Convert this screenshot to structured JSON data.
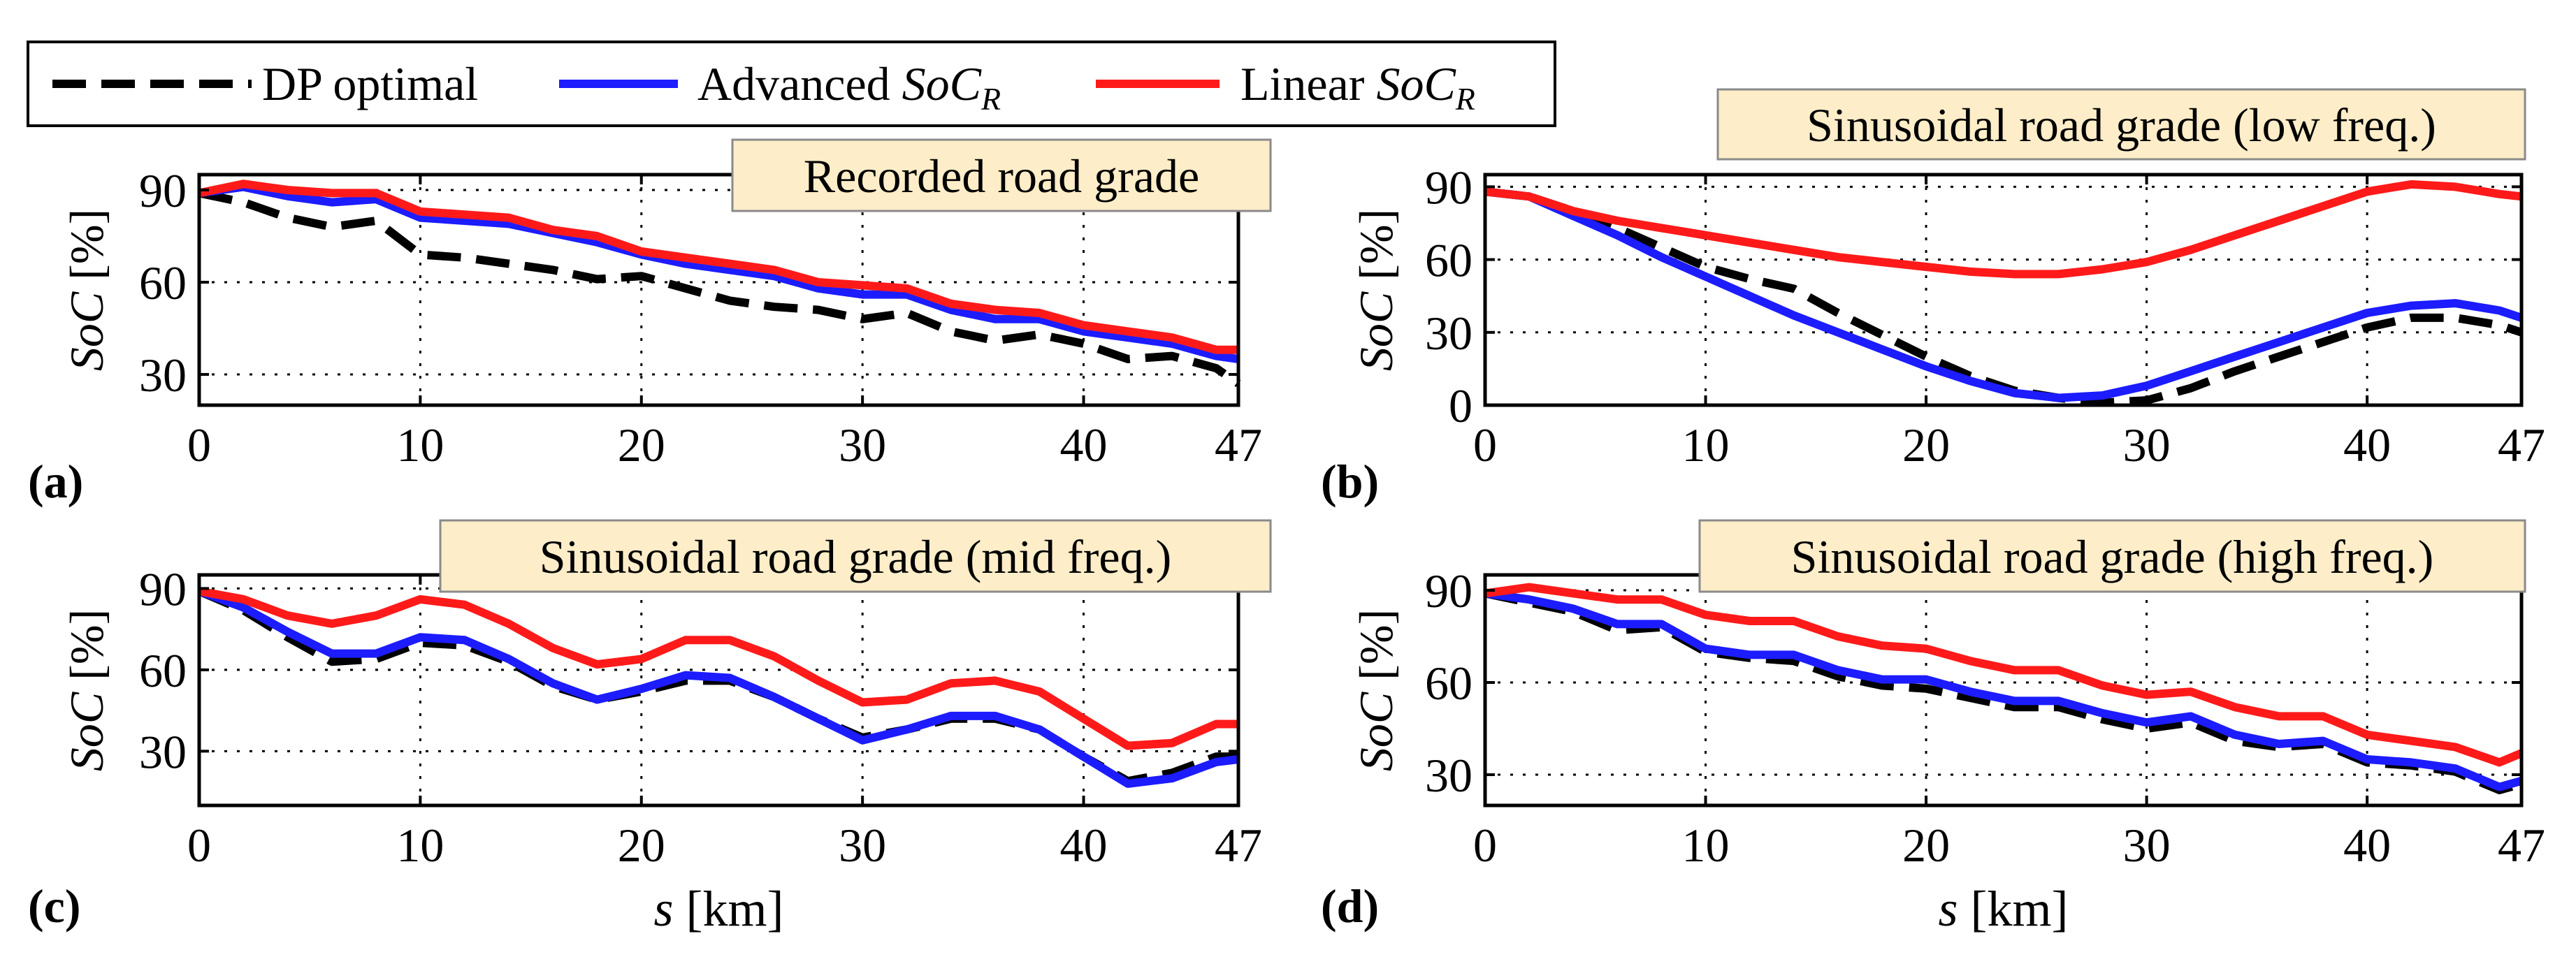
{
  "legend": {
    "entries": [
      {
        "label": "DP optimal",
        "color": "#000000",
        "dash": "dashed"
      },
      {
        "label": "Advanced ",
        "label_italic": "SoC",
        "label_sub": "R",
        "color": "#1c1cff",
        "dash": "solid"
      },
      {
        "label": "Linear ",
        "label_italic": "SoC",
        "label_sub": "R",
        "color": "#ff1a1a",
        "dash": "solid"
      }
    ]
  },
  "chart_data": [
    {
      "type": "line",
      "panel_label": "(a)",
      "title": "Recorded road grade",
      "xlabel": "",
      "ylabel_italic": "SoC",
      "ylabel_rest": " [%]",
      "xlim": [
        0,
        47
      ],
      "ylim": [
        20,
        95
      ],
      "xticks": [
        "0",
        "10",
        "20",
        "30",
        "40",
        "47"
      ],
      "xtick_values": [
        0,
        10,
        20,
        30,
        40,
        47
      ],
      "yticks": [
        "30",
        "60",
        "90"
      ],
      "ytick_values": [
        30,
        60,
        90
      ],
      "grid": true,
      "x": [
        0,
        2,
        4,
        6,
        8,
        10,
        12,
        14,
        16,
        18,
        20,
        22,
        24,
        26,
        28,
        30,
        32,
        34,
        36,
        38,
        40,
        42,
        44,
        46,
        47
      ],
      "series": [
        {
          "name": "DP optimal",
          "values": [
            89,
            86,
            81,
            78,
            80,
            69,
            68,
            66,
            64,
            61,
            62,
            58,
            54,
            52,
            51,
            48,
            50,
            44,
            41,
            43,
            40,
            35,
            36,
            32,
            27
          ]
        },
        {
          "name": "Advanced SoC_R",
          "values": [
            89,
            91,
            88,
            86,
            87,
            81,
            80,
            79,
            76,
            73,
            69,
            66,
            64,
            62,
            58,
            56,
            56,
            51,
            48,
            48,
            44,
            42,
            40,
            36,
            35
          ]
        },
        {
          "name": "Linear SoC_R",
          "values": [
            89,
            92,
            90,
            89,
            89,
            83,
            82,
            81,
            77,
            75,
            70,
            68,
            66,
            64,
            60,
            59,
            58,
            53,
            51,
            50,
            46,
            44,
            42,
            38,
            38
          ]
        }
      ]
    },
    {
      "type": "line",
      "panel_label": "(b)",
      "title": "Sinusoidal road grade (low freq.)",
      "xlabel": "",
      "ylabel_italic": "SoC",
      "ylabel_rest": " [%]",
      "xlim": [
        0,
        47
      ],
      "ylim": [
        0,
        95
      ],
      "xticks": [
        "0",
        "10",
        "20",
        "30",
        "40",
        "47"
      ],
      "xtick_values": [
        0,
        10,
        20,
        30,
        40,
        47
      ],
      "yticks": [
        "0",
        "30",
        "60",
        "90"
      ],
      "ytick_values": [
        0,
        30,
        60,
        90
      ],
      "grid": true,
      "x": [
        0,
        2,
        4,
        6,
        8,
        10,
        12,
        14,
        16,
        18,
        20,
        22,
        24,
        26,
        28,
        30,
        32,
        34,
        36,
        38,
        40,
        42,
        44,
        46,
        47
      ],
      "series": [
        {
          "name": "DP optimal",
          "values": [
            88,
            86,
            80,
            73,
            65,
            57,
            52,
            48,
            38,
            29,
            20,
            12,
            6,
            3,
            1,
            2,
            7,
            14,
            20,
            26,
            32,
            36,
            36,
            33,
            30
          ]
        },
        {
          "name": "Advanced SoC_R",
          "values": [
            88,
            86,
            78,
            70,
            61,
            53,
            45,
            37,
            30,
            23,
            16,
            10,
            5,
            3,
            4,
            8,
            14,
            20,
            26,
            32,
            38,
            41,
            42,
            39,
            36
          ]
        },
        {
          "name": "Linear SoC_R",
          "values": [
            88,
            86,
            80,
            76,
            73,
            70,
            67,
            64,
            61,
            59,
            57,
            55,
            54,
            54,
            56,
            59,
            64,
            70,
            76,
            82,
            88,
            91,
            90,
            87,
            86
          ]
        }
      ]
    },
    {
      "type": "line",
      "panel_label": "(c)",
      "title": "Sinusoidal road grade (mid freq.)",
      "xlabel_italic": "s",
      "xlabel_rest": " [km]",
      "ylabel_italic": "SoC",
      "ylabel_rest": " [%]",
      "xlim": [
        0,
        47
      ],
      "ylim": [
        10,
        95
      ],
      "xticks": [
        "0",
        "10",
        "20",
        "30",
        "40",
        "47"
      ],
      "xtick_values": [
        0,
        10,
        20,
        30,
        40,
        47
      ],
      "yticks": [
        "30",
        "60",
        "90"
      ],
      "ytick_values": [
        30,
        60,
        90
      ],
      "grid": true,
      "x": [
        0,
        2,
        4,
        6,
        8,
        10,
        12,
        14,
        16,
        18,
        20,
        22,
        24,
        26,
        28,
        30,
        32,
        34,
        36,
        38,
        40,
        42,
        44,
        46,
        47
      ],
      "series": [
        {
          "name": "DP optimal",
          "values": [
            89,
            82,
            72,
            63,
            64,
            70,
            69,
            63,
            54,
            49,
            52,
            56,
            56,
            50,
            42,
            35,
            38,
            42,
            42,
            38,
            28,
            19,
            22,
            28,
            28
          ]
        },
        {
          "name": "Advanced SoC_R",
          "values": [
            89,
            83,
            74,
            66,
            66,
            72,
            71,
            64,
            55,
            49,
            53,
            58,
            57,
            50,
            42,
            34,
            38,
            43,
            43,
            38,
            28,
            18,
            20,
            26,
            27
          ]
        },
        {
          "name": "Linear SoC_R",
          "values": [
            89,
            86,
            80,
            77,
            80,
            86,
            84,
            77,
            68,
            62,
            64,
            71,
            71,
            65,
            56,
            48,
            49,
            55,
            56,
            52,
            42,
            32,
            33,
            40,
            40
          ]
        }
      ]
    },
    {
      "type": "line",
      "panel_label": "(d)",
      "title": "Sinusoidal road grade (high freq.)",
      "xlabel_italic": "s",
      "xlabel_rest": " [km]",
      "ylabel_italic": "SoC",
      "ylabel_rest": " [%]",
      "xlim": [
        0,
        47
      ],
      "ylim": [
        20,
        95
      ],
      "xticks": [
        "0",
        "10",
        "20",
        "30",
        "40",
        "47"
      ],
      "xtick_values": [
        0,
        10,
        20,
        30,
        40,
        47
      ],
      "yticks": [
        "30",
        "60",
        "90"
      ],
      "ytick_values": [
        30,
        60,
        90
      ],
      "grid": true,
      "x": [
        0,
        2,
        4,
        6,
        8,
        10,
        12,
        14,
        16,
        18,
        20,
        22,
        24,
        26,
        28,
        30,
        32,
        34,
        36,
        38,
        40,
        42,
        44,
        46,
        47
      ],
      "series": [
        {
          "name": "DP optimal",
          "values": [
            89,
            86,
            83,
            77,
            78,
            70,
            68,
            67,
            62,
            59,
            58,
            55,
            52,
            52,
            48,
            45,
            47,
            41,
            39,
            40,
            34,
            33,
            31,
            25,
            27
          ]
        },
        {
          "name": "Advanced SoC_R",
          "values": [
            89,
            87,
            84,
            79,
            79,
            71,
            69,
            69,
            64,
            61,
            61,
            57,
            54,
            54,
            50,
            47,
            49,
            43,
            40,
            41,
            35,
            34,
            32,
            26,
            28
          ]
        },
        {
          "name": "Linear SoC_R",
          "values": [
            89,
            91,
            89,
            87,
            87,
            82,
            80,
            80,
            75,
            72,
            71,
            67,
            64,
            64,
            59,
            56,
            57,
            52,
            49,
            49,
            43,
            41,
            39,
            34,
            37
          ]
        }
      ]
    }
  ]
}
